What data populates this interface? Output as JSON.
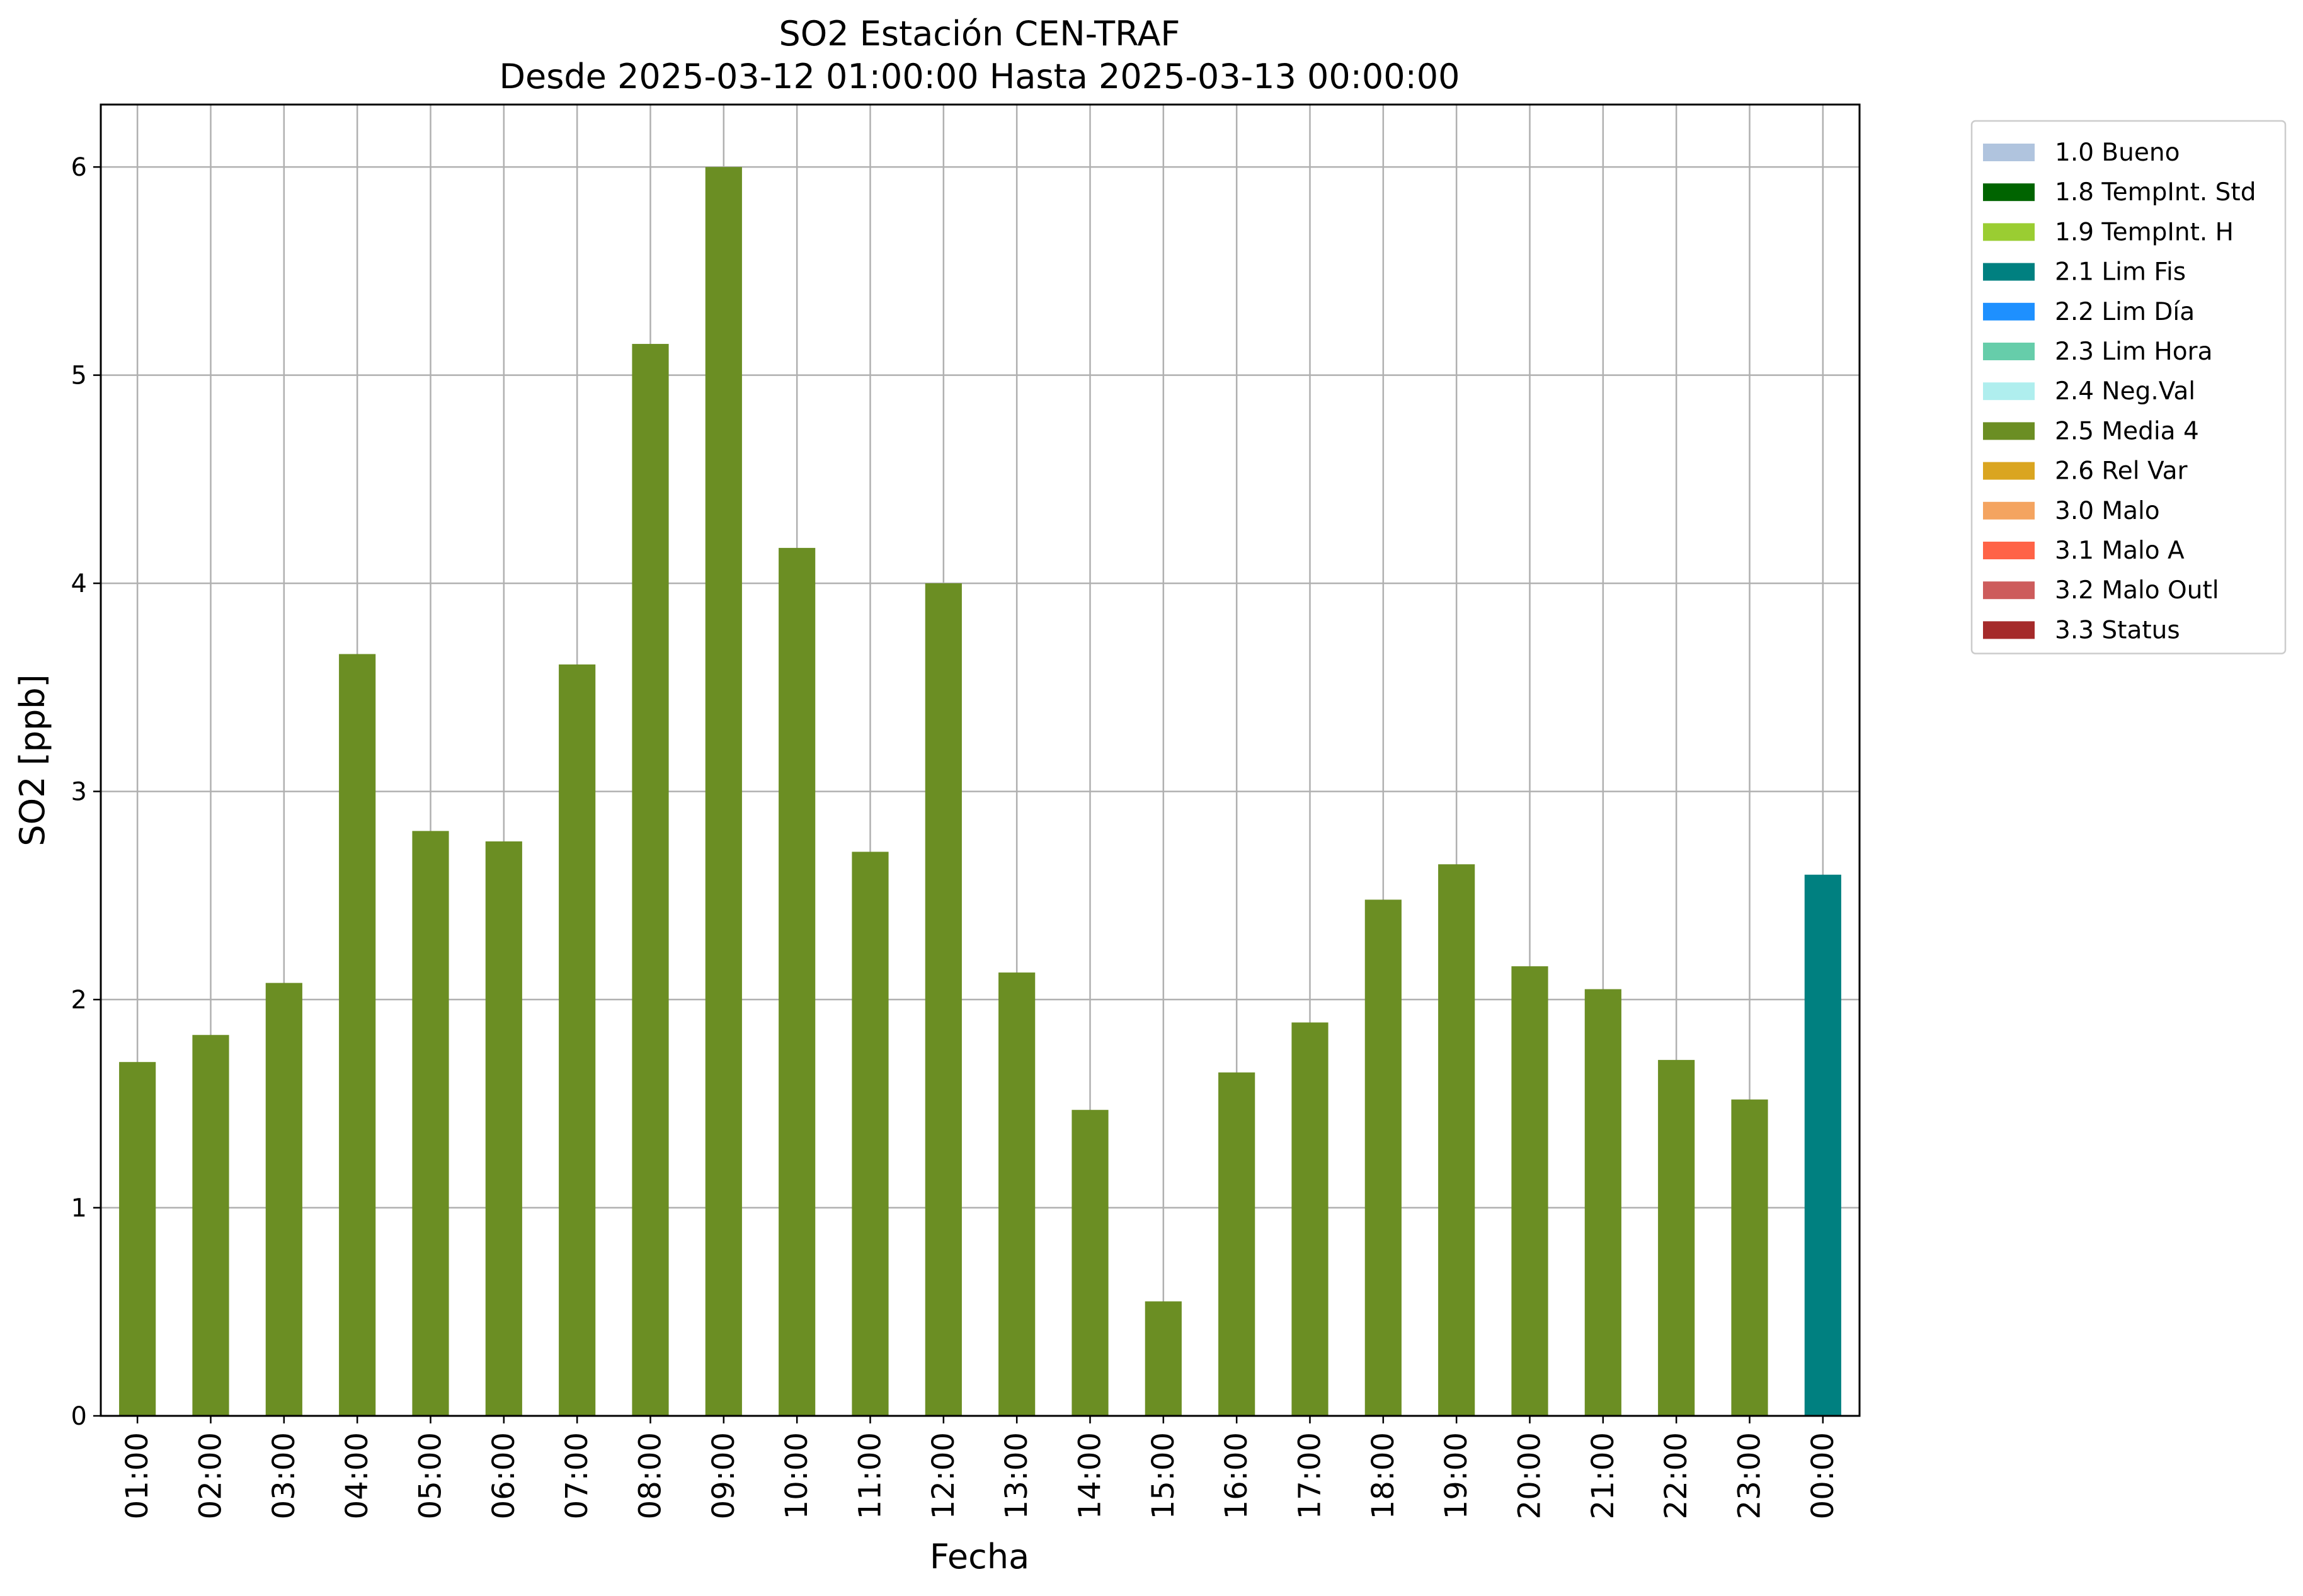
{
  "chart_data": {
    "type": "bar",
    "title": "SO2 Estación CEN-TRAF",
    "subtitle": "Desde 2025-03-12 01:00:00 Hasta 2025-03-13 00:00:00",
    "xlabel": "Fecha",
    "ylabel": "SO2 [ppb]",
    "ylim": [
      0,
      6.3
    ],
    "yticks": [
      "0",
      "1",
      "2",
      "3",
      "4",
      "5",
      "6"
    ],
    "grid": true,
    "legend_position": "outside-right",
    "categories": [
      "01:00",
      "02:00",
      "03:00",
      "04:00",
      "05:00",
      "06:00",
      "07:00",
      "08:00",
      "09:00",
      "10:00",
      "11:00",
      "12:00",
      "13:00",
      "14:00",
      "15:00",
      "16:00",
      "17:00",
      "18:00",
      "19:00",
      "20:00",
      "21:00",
      "22:00",
      "23:00",
      "00:00"
    ],
    "values": [
      1.7,
      1.83,
      2.08,
      3.66,
      2.81,
      2.76,
      3.61,
      5.15,
      6.0,
      4.17,
      2.71,
      4.0,
      2.13,
      1.47,
      0.55,
      1.65,
      1.89,
      2.48,
      2.65,
      2.16,
      2.05,
      1.71,
      1.52,
      2.6
    ],
    "flags": [
      "2.5 Media 4",
      "2.5 Media 4",
      "2.5 Media 4",
      "2.5 Media 4",
      "2.5 Media 4",
      "2.5 Media 4",
      "2.5 Media 4",
      "2.5 Media 4",
      "2.5 Media 4",
      "2.5 Media 4",
      "2.5 Media 4",
      "2.5 Media 4",
      "2.5 Media 4",
      "2.5 Media 4",
      "2.5 Media 4",
      "2.5 Media 4",
      "2.5 Media 4",
      "2.5 Media 4",
      "2.5 Media 4",
      "2.5 Media 4",
      "2.5 Media 4",
      "2.5 Media 4",
      "2.5 Media 4",
      "2.1 Lim Fis"
    ],
    "legend": [
      {
        "label": "1.0 Bueno",
        "color": "#b0c4de"
      },
      {
        "label": "1.8 TempInt. Std",
        "color": "#006400"
      },
      {
        "label": "1.9 TempInt. H",
        "color": "#9acd32"
      },
      {
        "label": "2.1 Lim Fis",
        "color": "#008080"
      },
      {
        "label": "2.2 Lim Día",
        "color": "#1e90ff"
      },
      {
        "label": "2.3 Lim Hora",
        "color": "#66cdaa"
      },
      {
        "label": "2.4 Neg.Val",
        "color": "#afeeee"
      },
      {
        "label": "2.5 Media 4",
        "color": "#6b8e23"
      },
      {
        "label": "2.6 Rel Var",
        "color": "#daa520"
      },
      {
        "label": "3.0 Malo",
        "color": "#f4a460"
      },
      {
        "label": "3.1 Malo A",
        "color": "#ff6347"
      },
      {
        "label": "3.2 Malo Outl",
        "color": "#cd5c5c"
      },
      {
        "label": "3.3 Status",
        "color": "#a52a2a"
      }
    ],
    "grid_color": "#b0b0b0"
  }
}
